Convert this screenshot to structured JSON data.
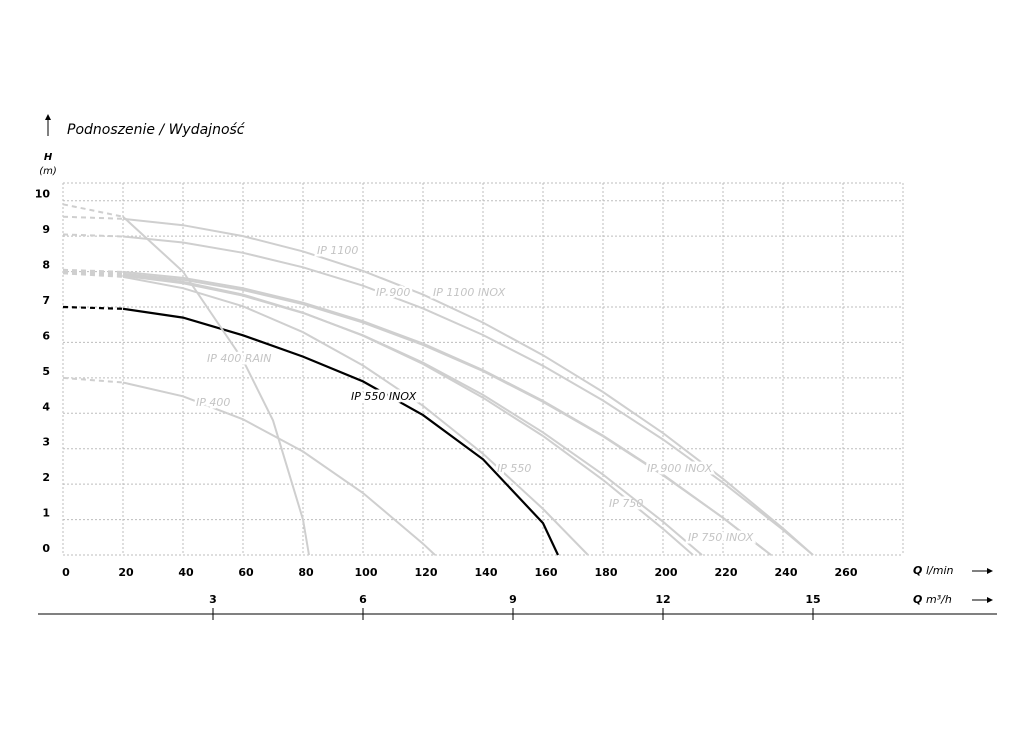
{
  "chart_data": {
    "type": "line",
    "title": "Podnoszenie / Wydajność",
    "y_label": "H",
    "y_unit": "(m)",
    "x_label": "Q",
    "x_unit": "l/min",
    "x2_label": "Q",
    "x2_unit": "m³/h",
    "xlim": [
      0,
      280
    ],
    "xticks": [
      0,
      20,
      40,
      60,
      80,
      100,
      120,
      140,
      160,
      180,
      200,
      220,
      240,
      260
    ],
    "ylim": [
      0,
      10.5
    ],
    "yticks": [
      0,
      1,
      2,
      3,
      4,
      5,
      6,
      7,
      8,
      9,
      10
    ],
    "x2lim": [
      0,
      16.8
    ],
    "x2ticks": [
      3,
      6,
      9,
      12,
      15
    ],
    "grid": true,
    "series": [
      {
        "name": "IP 1100",
        "color": "#cfcfcf",
        "x": [
          0,
          20,
          40,
          60,
          80,
          100,
          120,
          140,
          160,
          180,
          200,
          220,
          240,
          250
        ],
        "values": [
          9.55,
          9.49,
          9.31,
          9.0,
          8.57,
          8.02,
          7.35,
          6.56,
          5.64,
          4.6,
          3.44,
          2.15,
          0.75,
          0
        ]
      },
      {
        "name": "IP 1100 INOX",
        "color": "#cfcfcf",
        "x": [
          0,
          20,
          40,
          60,
          80,
          100,
          120,
          140,
          160,
          180,
          200,
          220,
          240,
          250
        ],
        "values": [
          9.05,
          8.99,
          8.82,
          8.53,
          8.12,
          7.6,
          6.96,
          6.21,
          5.34,
          4.36,
          3.26,
          2.04,
          0.71,
          0
        ]
      },
      {
        "name": "IP 900",
        "color": "#cfcfcf",
        "x": [
          0,
          20,
          40,
          60,
          80,
          100,
          120,
          140,
          160,
          180,
          200,
          220,
          236
        ],
        "values": [
          8.05,
          7.99,
          7.82,
          7.53,
          7.12,
          6.6,
          5.97,
          5.22,
          4.35,
          3.37,
          2.27,
          1.05,
          0
        ]
      },
      {
        "name": "IP 900 INOX",
        "color": "#cfcfcf",
        "x": [
          0,
          20,
          40,
          60,
          80,
          100,
          120,
          140,
          160,
          180,
          200,
          220,
          236
        ],
        "values": [
          8.0,
          7.94,
          7.77,
          7.48,
          7.08,
          6.56,
          5.93,
          5.19,
          4.32,
          3.35,
          2.25,
          1.05,
          0
        ]
      },
      {
        "name": "IP 750",
        "color": "#cfcfcf",
        "x": [
          0,
          20,
          40,
          60,
          80,
          100,
          120,
          140,
          160,
          180,
          200,
          210
        ],
        "values": [
          8.0,
          7.93,
          7.71,
          7.35,
          6.84,
          6.19,
          5.39,
          4.44,
          3.36,
          2.12,
          0.74,
          0
        ]
      },
      {
        "name": "IP 750 INOX",
        "color": "#cfcfcf",
        "x": [
          0,
          20,
          40,
          60,
          80,
          100,
          120,
          140,
          160,
          180,
          200,
          213
        ],
        "values": [
          7.95,
          7.88,
          7.67,
          7.32,
          6.83,
          6.2,
          5.43,
          4.52,
          3.46,
          2.27,
          0.94,
          0
        ]
      },
      {
        "name": "IP 550",
        "color": "#cfcfcf",
        "x": [
          0,
          20,
          40,
          60,
          80,
          100,
          120,
          140,
          160,
          175
        ],
        "values": [
          7.95,
          7.85,
          7.53,
          7.02,
          6.29,
          5.35,
          4.21,
          2.86,
          1.3,
          0
        ]
      },
      {
        "name": "IP 550 INOX",
        "color": "#000000",
        "x": [
          0,
          20,
          40,
          60,
          80,
          100,
          120,
          140,
          160,
          165
        ],
        "values": [
          7.0,
          6.95,
          6.7,
          6.2,
          5.6,
          4.9,
          3.95,
          2.7,
          0.9,
          0
        ]
      },
      {
        "name": "IP 400",
        "color": "#cfcfcf",
        "x": [
          0,
          20,
          40,
          60,
          80,
          100,
          120,
          124
        ],
        "values": [
          5.0,
          4.87,
          4.48,
          3.83,
          2.92,
          1.75,
          0.32,
          0
        ]
      },
      {
        "name": "IP 400 RAIN",
        "color": "#cfcfcf",
        "x": [
          0,
          20,
          40,
          60,
          70,
          80,
          82
        ],
        "values": [
          9.9,
          9.55,
          8.0,
          5.5,
          3.8,
          1.0,
          0
        ]
      }
    ]
  }
}
